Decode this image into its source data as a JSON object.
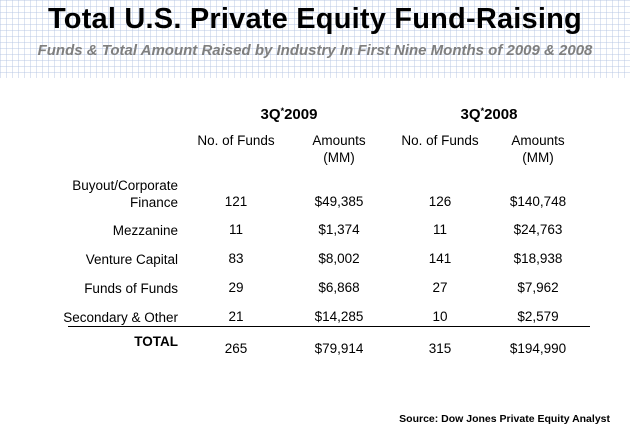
{
  "header": {
    "title": "Total U.S. Private Equity Fund-Raising",
    "subtitle": "Funds & Total Amount Raised by Industry In First Nine Months of 2009 & 2008"
  },
  "colors": {
    "background": "#ffffff",
    "grid": "#b4c4e2",
    "subtitle": "#7f7f7f",
    "text": "#000000"
  },
  "chart_data": {
    "type": "table",
    "title": "Total U.S. Private Equity Fund-Raising",
    "subtitle": "Funds & Total Amount Raised by Industry In First Nine Months of 2009 & 2008",
    "groups": [
      {
        "main": "3Q",
        "sup": "*",
        "year": "2009"
      },
      {
        "main": "3Q",
        "sup": "*",
        "year": "2008"
      }
    ],
    "columns": [
      {
        "line1": "No. of Funds",
        "line2": ""
      },
      {
        "line1": "Amounts",
        "line2": "(MM)"
      },
      {
        "line1": "No. of Funds",
        "line2": ""
      },
      {
        "line1": "Amounts",
        "line2": "(MM)"
      }
    ],
    "rows": [
      {
        "label": "Buyout/Corporate",
        "label2": "Finance",
        "cells": [
          "121",
          "$49,385",
          "126",
          "$140,748"
        ]
      },
      {
        "label": "Mezzanine",
        "label2": "",
        "cells": [
          "11",
          "$1,374",
          "11",
          "$24,763"
        ]
      },
      {
        "label": "Venture Capital",
        "label2": "",
        "cells": [
          "83",
          "$8,002",
          "141",
          "$18,938"
        ]
      },
      {
        "label": "Funds of Funds",
        "label2": "",
        "cells": [
          "29",
          "$6,868",
          "27",
          "$7,962"
        ]
      },
      {
        "label": "Secondary & Other",
        "label2": "",
        "cells": [
          "21",
          "$14,285",
          "10",
          "$2,579"
        ]
      }
    ],
    "total": {
      "label": "TOTAL",
      "cells": [
        "265",
        "$79,914",
        "315",
        "$194,990"
      ]
    },
    "source": "Source: Dow Jones Private Equity Analyst"
  }
}
